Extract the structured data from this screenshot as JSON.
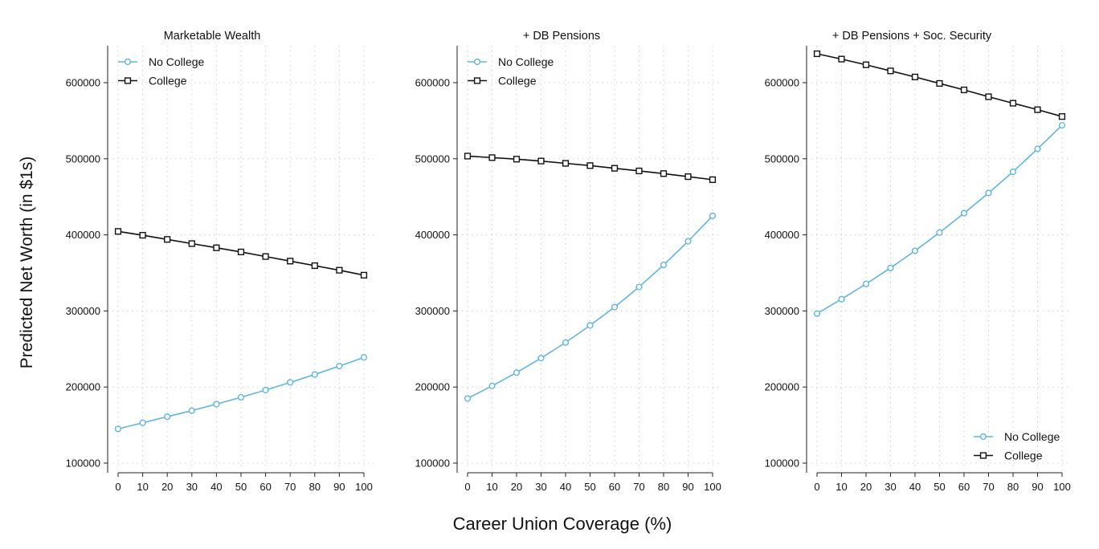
{
  "figure": {
    "ylabel": "Predicted Net Worth (in $1s)",
    "xlabel": "Career Union Coverage (%)"
  },
  "colors": {
    "no_college": "#5fb6e2",
    "college": "#111111",
    "grid": "#cfcfcf"
  },
  "chart_data": [
    {
      "type": "line",
      "title": "Marketable Wealth",
      "x": [
        0,
        10,
        20,
        30,
        40,
        50,
        60,
        70,
        80,
        90,
        100
      ],
      "xticks": [
        "0",
        "10",
        "20",
        "30",
        "40",
        "50",
        "60",
        "70",
        "80",
        "90",
        "100"
      ],
      "yticks": [
        100000,
        200000,
        300000,
        400000,
        500000,
        600000
      ],
      "ylim": [
        100000,
        640000
      ],
      "legend": "top-left",
      "grid": true,
      "series": [
        {
          "name": "No College",
          "marker": "circle",
          "values": [
            145000,
            153000,
            161000,
            169000,
            177500,
            186500,
            196000,
            206000,
            216500,
            227500,
            239000
          ]
        },
        {
          "name": "College",
          "marker": "square",
          "values": [
            404500,
            399500,
            394000,
            388500,
            383000,
            377500,
            371500,
            365500,
            359500,
            353500,
            347000
          ]
        }
      ]
    },
    {
      "type": "line",
      "title": "+ DB Pensions",
      "x": [
        0,
        10,
        20,
        30,
        40,
        50,
        60,
        70,
        80,
        90,
        100
      ],
      "xticks": [
        "0",
        "10",
        "20",
        "30",
        "40",
        "50",
        "60",
        "70",
        "80",
        "90",
        "100"
      ],
      "yticks": [
        100000,
        200000,
        300000,
        400000,
        500000,
        600000
      ],
      "ylim": [
        100000,
        640000
      ],
      "legend": "top-left",
      "grid": true,
      "series": [
        {
          "name": "No College",
          "marker": "circle",
          "values": [
            185000,
            201500,
            219000,
            238000,
            258500,
            281000,
            305000,
            331500,
            360500,
            391500,
            425000
          ]
        },
        {
          "name": "College",
          "marker": "square",
          "values": [
            503500,
            501500,
            499500,
            497000,
            494000,
            491000,
            487500,
            484000,
            480500,
            476500,
            472500
          ]
        }
      ]
    },
    {
      "type": "line",
      "title": "+ DB Pensions + Soc. Security",
      "x": [
        0,
        10,
        20,
        30,
        40,
        50,
        60,
        70,
        80,
        90,
        100
      ],
      "xticks": [
        "0",
        "10",
        "20",
        "30",
        "40",
        "50",
        "60",
        "70",
        "80",
        "90",
        "100"
      ],
      "yticks": [
        100000,
        200000,
        300000,
        400000,
        500000,
        600000
      ],
      "ylim": [
        100000,
        640000
      ],
      "legend": "bottom-right",
      "grid": true,
      "series": [
        {
          "name": "No College",
          "marker": "circle",
          "values": [
            296500,
            315500,
            335500,
            356500,
            379000,
            403000,
            428500,
            455000,
            483000,
            513000,
            544000
          ]
        },
        {
          "name": "College",
          "marker": "square",
          "values": [
            638000,
            631000,
            623500,
            615500,
            607500,
            599000,
            590500,
            581500,
            573000,
            564500,
            555500
          ]
        }
      ]
    }
  ]
}
